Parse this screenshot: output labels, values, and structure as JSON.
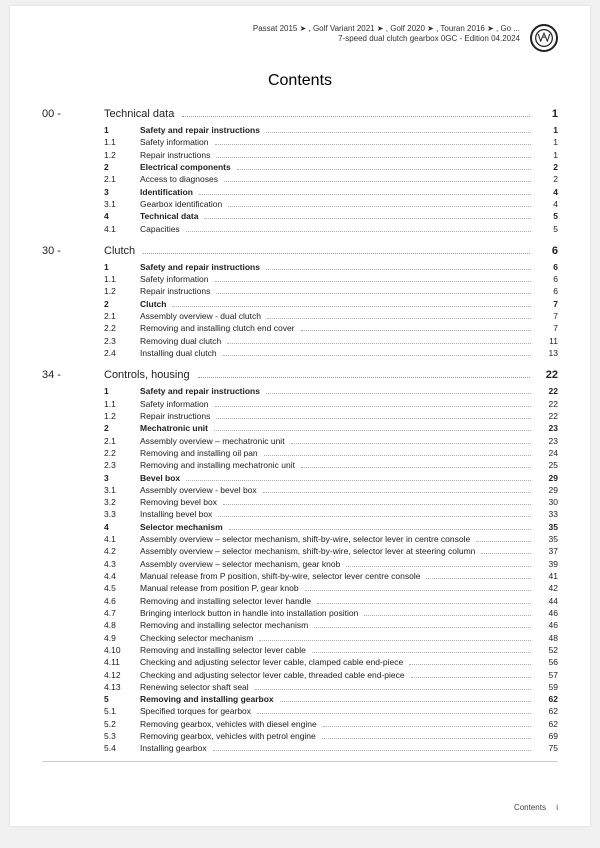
{
  "header": {
    "line1": "Passat 2015 ➤ , Golf Variant 2021 ➤ , Golf 2020 ➤ , Touran 2016 ➤ , Go ...",
    "line2": "7-speed dual clutch gearbox 0GC - Edition 04.2024"
  },
  "title": "Contents",
  "chapters": [
    {
      "num": "00 -",
      "title": "Technical data",
      "page": "1",
      "items": [
        {
          "n": "1",
          "t": "Safety and repair instructions",
          "p": "1",
          "bold": true
        },
        {
          "n": "1.1",
          "t": "Safety information",
          "p": "1"
        },
        {
          "n": "1.2",
          "t": "Repair instructions",
          "p": "1"
        },
        {
          "n": "2",
          "t": "Electrical components",
          "p": "2",
          "bold": true
        },
        {
          "n": "2.1",
          "t": "Access to diagnoses",
          "p": "2"
        },
        {
          "n": "3",
          "t": "Identification",
          "p": "4",
          "bold": true
        },
        {
          "n": "3.1",
          "t": "Gearbox identification",
          "p": "4"
        },
        {
          "n": "4",
          "t": "Technical data",
          "p": "5",
          "bold": true
        },
        {
          "n": "4.1",
          "t": "Capacities",
          "p": "5"
        }
      ]
    },
    {
      "num": "30 -",
      "title": "Clutch",
      "page": "6",
      "items": [
        {
          "n": "1",
          "t": "Safety and repair instructions",
          "p": "6",
          "bold": true
        },
        {
          "n": "1.1",
          "t": "Safety information",
          "p": "6"
        },
        {
          "n": "1.2",
          "t": "Repair instructions",
          "p": "6"
        },
        {
          "n": "2",
          "t": "Clutch",
          "p": "7",
          "bold": true
        },
        {
          "n": "2.1",
          "t": "Assembly overview - dual clutch",
          "p": "7"
        },
        {
          "n": "2.2",
          "t": "Removing and installing clutch end cover",
          "p": "7"
        },
        {
          "n": "2.3",
          "t": "Removing dual clutch",
          "p": "11"
        },
        {
          "n": "2.4",
          "t": "Installing dual clutch",
          "p": "13"
        }
      ]
    },
    {
      "num": "34 -",
      "title": "Controls, housing",
      "page": "22",
      "items": [
        {
          "n": "1",
          "t": "Safety and repair instructions",
          "p": "22",
          "bold": true
        },
        {
          "n": "1.1",
          "t": "Safety information",
          "p": "22"
        },
        {
          "n": "1.2",
          "t": "Repair instructions",
          "p": "22"
        },
        {
          "n": "2",
          "t": "Mechatronic unit",
          "p": "23",
          "bold": true
        },
        {
          "n": "2.1",
          "t": "Assembly overview – mechatronic unit",
          "p": "23"
        },
        {
          "n": "2.2",
          "t": "Removing and installing oil pan",
          "p": "24"
        },
        {
          "n": "2.3",
          "t": "Removing and installing mechatronic unit",
          "p": "25"
        },
        {
          "n": "3",
          "t": "Bevel box",
          "p": "29",
          "bold": true
        },
        {
          "n": "3.1",
          "t": "Assembly overview - bevel box",
          "p": "29"
        },
        {
          "n": "3.2",
          "t": "Removing bevel box",
          "p": "30"
        },
        {
          "n": "3.3",
          "t": "Installing bevel box",
          "p": "33"
        },
        {
          "n": "4",
          "t": "Selector mechanism",
          "p": "35",
          "bold": true
        },
        {
          "n": "4.1",
          "t": "Assembly overview – selector mechanism, shift-by-wire, selector lever in centre console",
          "p": "35"
        },
        {
          "n": "4.2",
          "t": "Assembly overview – selector mechanism, shift-by-wire, selector lever at steering column",
          "p": "37"
        },
        {
          "n": "4.3",
          "t": "Assembly overview – selector mechanism, gear knob",
          "p": "39"
        },
        {
          "n": "4.4",
          "t": "Manual release from P position, shift-by-wire, selector lever centre console",
          "p": "41"
        },
        {
          "n": "4.5",
          "t": "Manual release from position P, gear knob",
          "p": "42"
        },
        {
          "n": "4.6",
          "t": "Removing and installing selector lever handle",
          "p": "44"
        },
        {
          "n": "4.7",
          "t": "Bringing interlock button in handle into installation position",
          "p": "46"
        },
        {
          "n": "4.8",
          "t": "Removing and installing selector mechanism",
          "p": "46"
        },
        {
          "n": "4.9",
          "t": "Checking selector mechanism",
          "p": "48"
        },
        {
          "n": "4.10",
          "t": "Removing and installing selector lever cable",
          "p": "52"
        },
        {
          "n": "4.11",
          "t": "Checking and adjusting selector lever cable, clamped cable end-piece",
          "p": "56"
        },
        {
          "n": "4.12",
          "t": "Checking and adjusting selector lever cable, threaded cable end-piece",
          "p": "57"
        },
        {
          "n": "4.13",
          "t": "Renewing selector shaft seal",
          "p": "59"
        },
        {
          "n": "5",
          "t": "Removing and installing gearbox",
          "p": "62",
          "bold": true
        },
        {
          "n": "5.1",
          "t": "Specified torques for gearbox",
          "p": "62"
        },
        {
          "n": "5.2",
          "t": "Removing gearbox, vehicles with diesel engine",
          "p": "62"
        },
        {
          "n": "5.3",
          "t": "Removing gearbox, vehicles with petrol engine",
          "p": "69"
        },
        {
          "n": "5.4",
          "t": "Installing gearbox",
          "p": "75"
        }
      ]
    }
  ],
  "footer": {
    "label": "Contents",
    "roman": "i"
  }
}
